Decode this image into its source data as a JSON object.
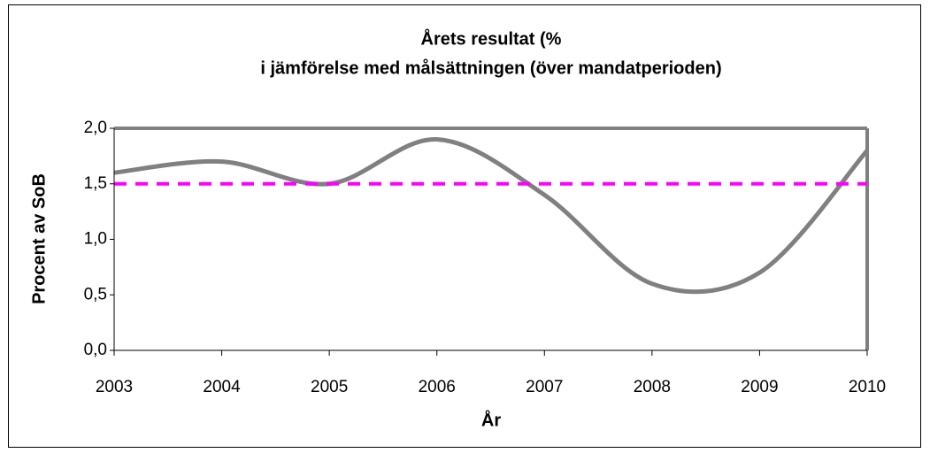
{
  "chart_data": {
    "type": "line",
    "title": [
      "Årets resultat (%",
      "i jämförelse med målsättningen (över mandatperioden)"
    ],
    "x_label": "År",
    "y_label": "Procent av SoB",
    "x": [
      2003,
      2004,
      2005,
      2006,
      2007,
      2008,
      2009,
      2010
    ],
    "series": [
      {
        "color": "#808080",
        "values": [
          1.6,
          1.7,
          1.5,
          1.9,
          1.4,
          0.6,
          0.7,
          1.8
        ],
        "smooth": true
      },
      {
        "color": "#ff00ff",
        "values": [
          1.5,
          1.5,
          1.5,
          1.5,
          1.5,
          1.5,
          1.5,
          1.5
        ],
        "dashed": true
      }
    ],
    "xlim": [
      2003,
      2010
    ],
    "xticks": [
      2003,
      2004,
      2005,
      2006,
      2007,
      2008,
      2009,
      2010
    ],
    "ylim": [
      0,
      2
    ],
    "yticks": [
      {
        "value": 0,
        "label": "0,0"
      },
      {
        "value": 0.5,
        "label": "0,5"
      },
      {
        "value": 1,
        "label": "1,0"
      },
      {
        "value": 1.5,
        "label": "1,5"
      },
      {
        "value": 2,
        "label": "2,0"
      }
    ],
    "grid": false
  }
}
